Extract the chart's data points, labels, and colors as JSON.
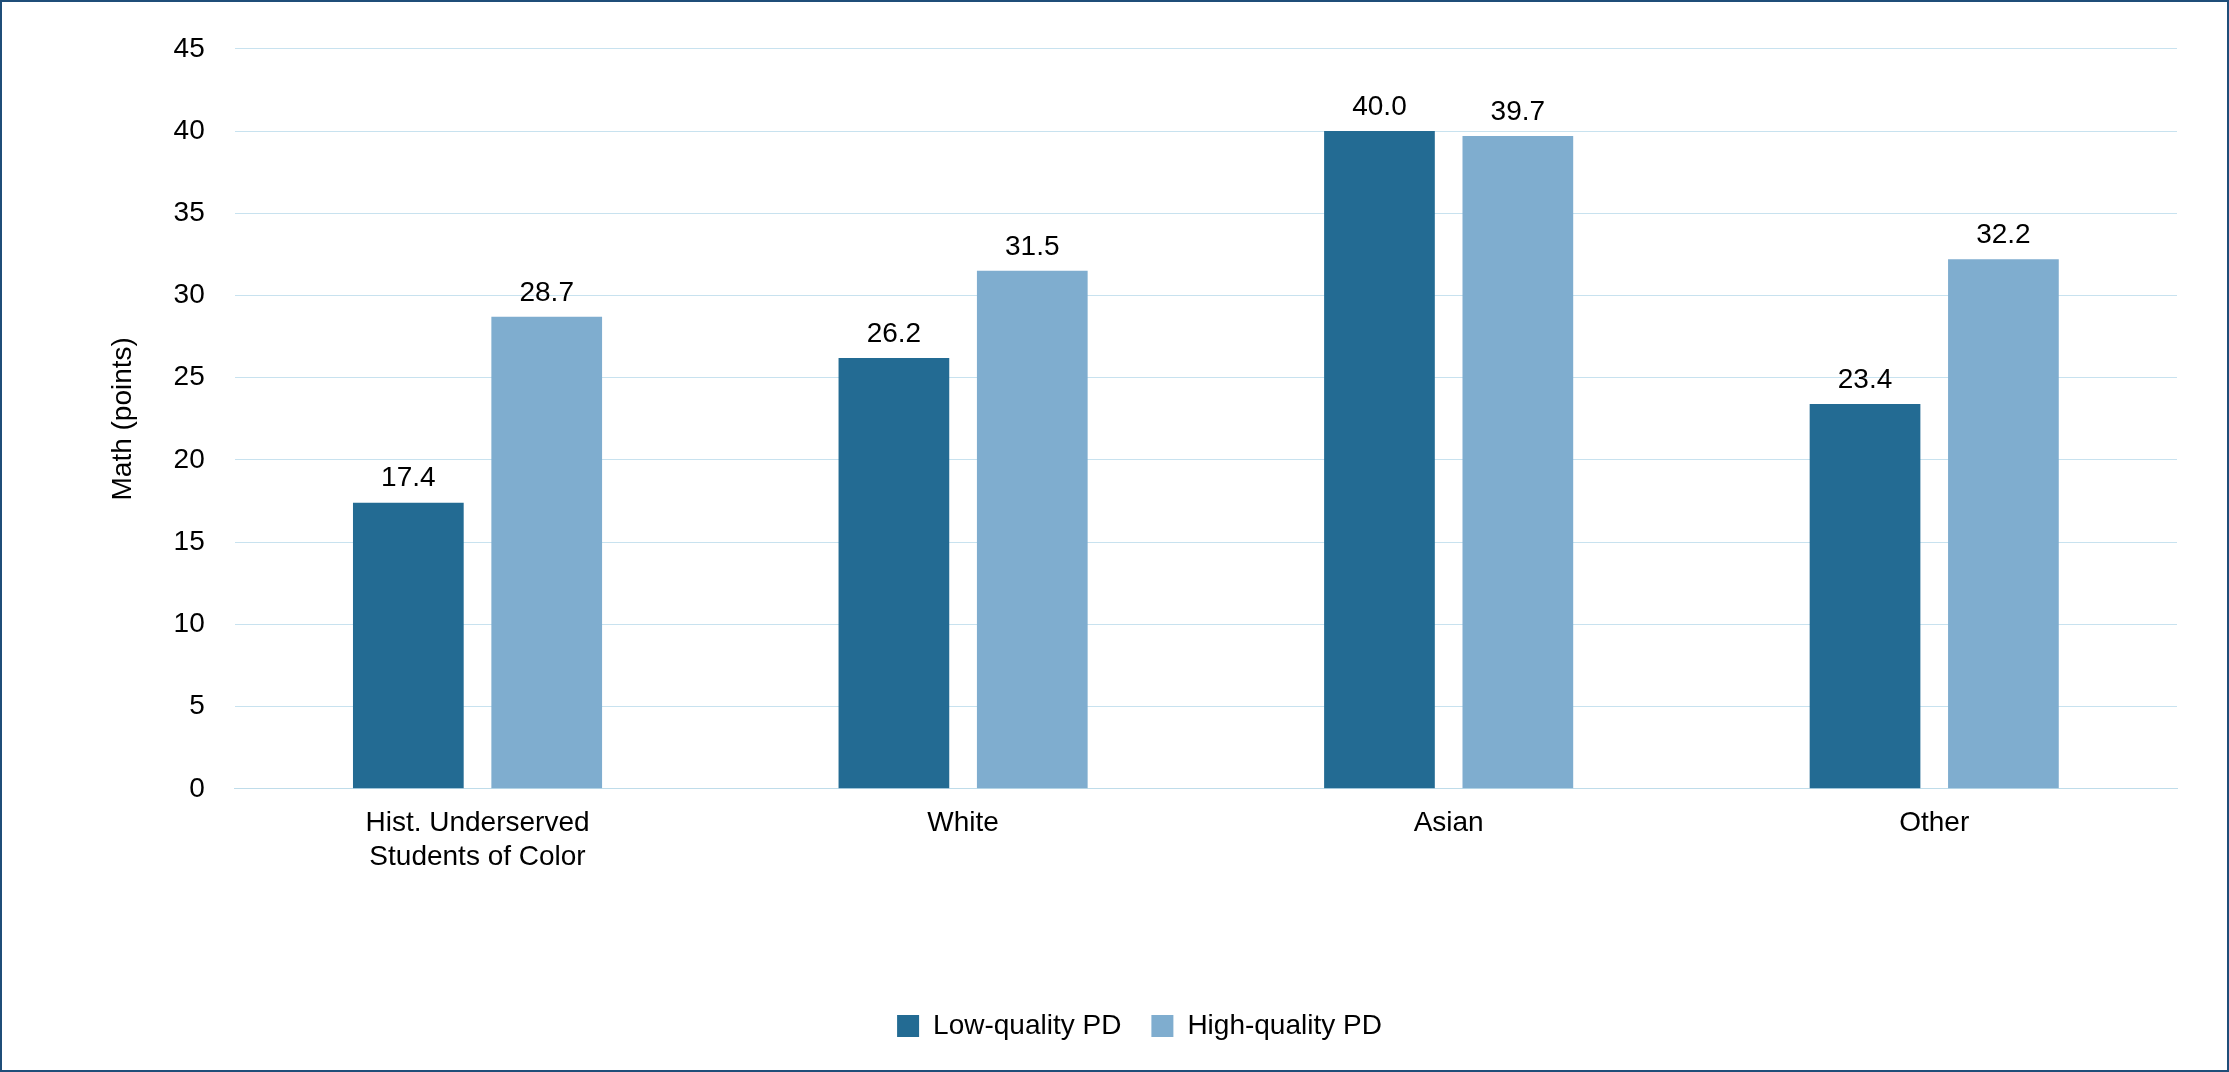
{
  "chart_data": {
    "type": "bar",
    "ylabel": "Math (points)",
    "categories": [
      "Hist. Underserved Students of Color",
      "White",
      "Asian",
      "Other"
    ],
    "series": [
      {
        "name": "Low-quality PD",
        "color": "#236b93",
        "values": [
          17.4,
          26.2,
          40.0,
          23.4
        ],
        "value_labels": [
          "17.4",
          "26.2",
          "40.0",
          "23.4"
        ]
      },
      {
        "name": "High-quality PD",
        "color": "#7fadcf",
        "values": [
          28.7,
          31.5,
          39.7,
          32.2
        ],
        "value_labels": [
          "28.7",
          "31.5",
          "39.7",
          "32.2"
        ]
      }
    ],
    "ylim": [
      0,
      45
    ],
    "yticks": [
      0,
      5,
      10,
      15,
      20,
      25,
      30,
      35,
      40,
      45
    ],
    "grid": "y",
    "legend": "bottom"
  }
}
